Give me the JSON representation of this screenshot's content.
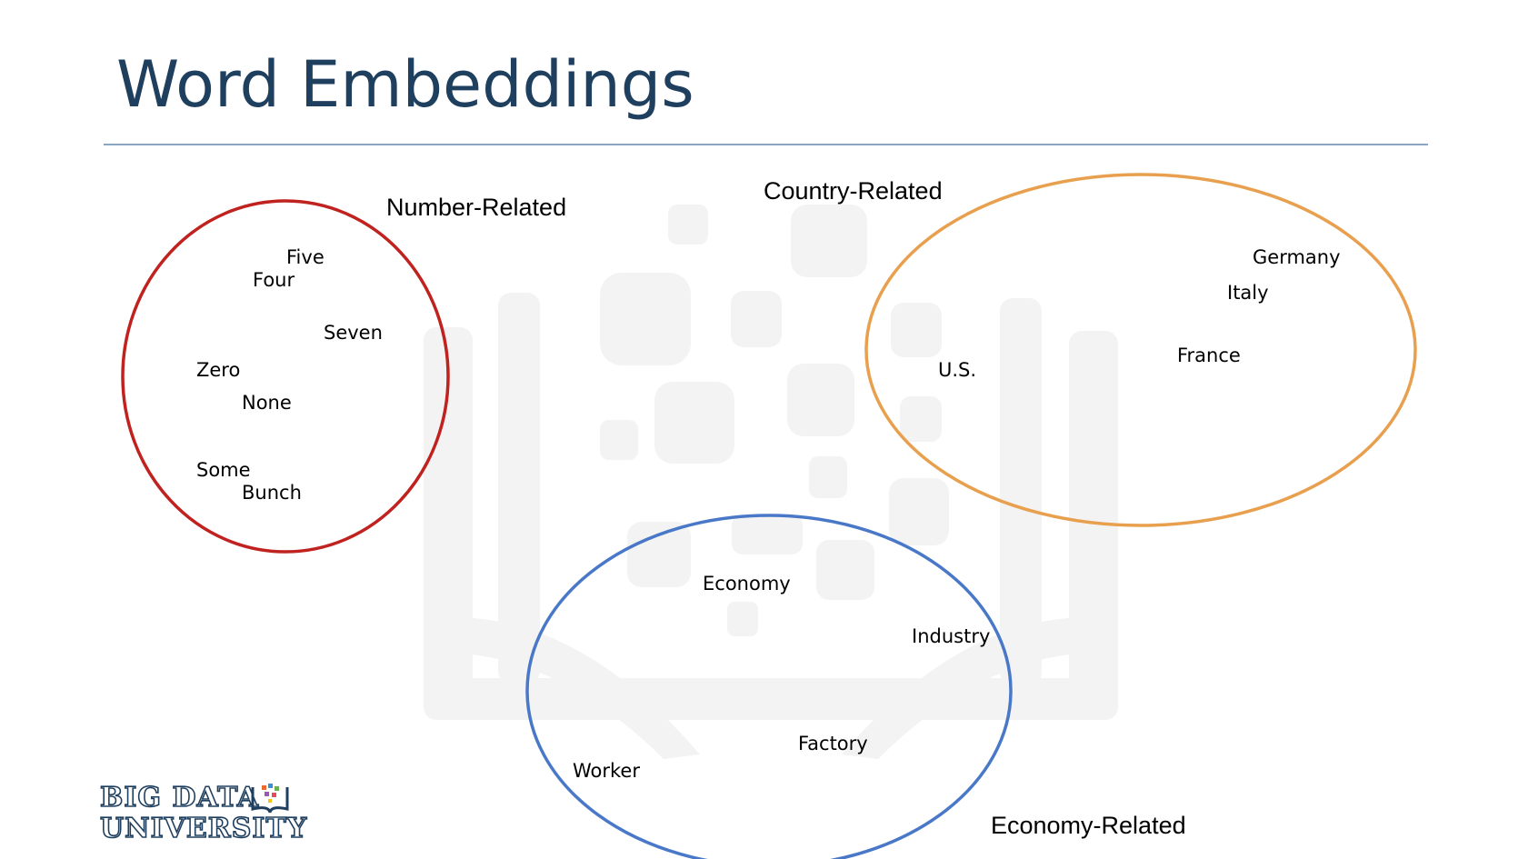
{
  "slide": {
    "title": "Word Embeddings"
  },
  "groups": [
    {
      "id": "number",
      "label": "Number-Related",
      "color": "#c0221f",
      "words": [
        "Five",
        "Four",
        "Seven",
        "Zero",
        "None",
        "Some",
        "Bunch"
      ]
    },
    {
      "id": "country",
      "label": "Country-Related",
      "color": "#e8a04e",
      "words": [
        "Germany",
        "Italy",
        "France",
        "U.S."
      ]
    },
    {
      "id": "economy",
      "label": "Economy-Related",
      "color": "#4a78c8",
      "words": [
        "Economy",
        "Industry",
        "Factory",
        "Worker"
      ]
    }
  ],
  "logo": {
    "line1": "BIG DATA",
    "line2": "UNIVERSITY"
  }
}
